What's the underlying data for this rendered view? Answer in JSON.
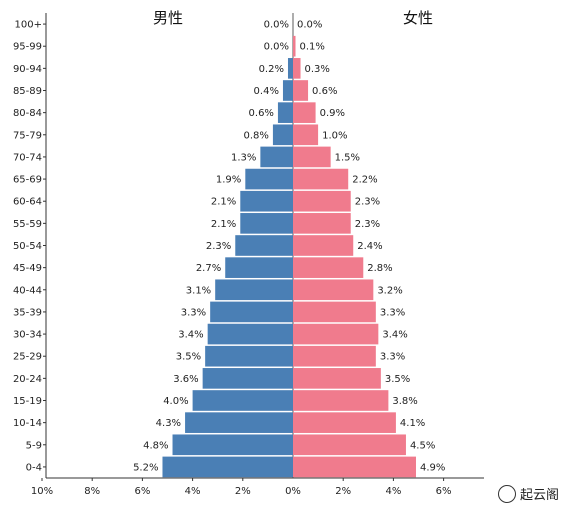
{
  "chart_data": {
    "type": "bar",
    "orientation": "horizontal-population-pyramid",
    "categories": [
      "100+",
      "95-99",
      "90-94",
      "85-89",
      "80-84",
      "75-79",
      "70-74",
      "65-69",
      "60-64",
      "55-59",
      "50-54",
      "45-49",
      "40-44",
      "35-39",
      "30-34",
      "25-29",
      "20-24",
      "15-19",
      "10-14",
      "5-9",
      "0-4"
    ],
    "series": [
      {
        "name": "男性",
        "color": "#4a7fb5",
        "values": [
          0.0,
          0.0,
          0.2,
          0.4,
          0.6,
          0.8,
          1.3,
          1.9,
          2.1,
          2.1,
          2.3,
          2.7,
          3.1,
          3.3,
          3.4,
          3.5,
          3.6,
          4.0,
          4.3,
          4.8,
          5.2
        ]
      },
      {
        "name": "女性",
        "color": "#f07b8d",
        "values": [
          0.0,
          0.1,
          0.3,
          0.6,
          0.9,
          1.0,
          1.5,
          2.2,
          2.3,
          2.3,
          2.4,
          2.8,
          3.2,
          3.3,
          3.4,
          3.3,
          3.5,
          3.8,
          4.1,
          4.5,
          4.9
        ]
      }
    ],
    "left_ticks": [
      "10%",
      "8%",
      "6%",
      "4%",
      "2%"
    ],
    "center_tick": "0%",
    "right_ticks": [
      "2%",
      "4%",
      "6%"
    ],
    "xlim_left": [
      10,
      0
    ],
    "xlim_right": [
      0,
      7.5
    ],
    "grid": false
  },
  "watermark": "起云阁"
}
